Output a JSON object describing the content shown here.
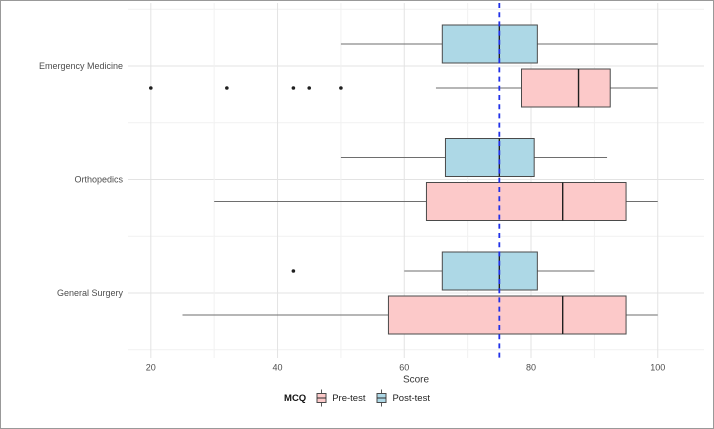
{
  "figure": {
    "background": "#ffffff",
    "border_color": "#999999"
  },
  "chart_data": {
    "type": "boxplot",
    "orientation": "horizontal",
    "xlabel": "Score",
    "x_ticks": [
      20,
      40,
      60,
      80,
      100
    ],
    "x_minor_ticks": [
      30,
      50,
      70,
      90
    ],
    "xlim": [
      16.4,
      107.3
    ],
    "categories": [
      "Emergency Medicine",
      "Orthopedics",
      "General Surgery"
    ],
    "reference_line": {
      "value": 75,
      "style": "dashed",
      "color": "#2030e8"
    },
    "series": [
      {
        "name": "Pre-test",
        "fill": "#FCC9C9",
        "boxes": [
          {
            "category": "Emergency Medicine",
            "whisker_low": 65,
            "q1": 78.5,
            "median": 87.5,
            "q3": 92.5,
            "whisker_high": 100,
            "outliers": [
              20,
              32,
              42.5,
              45,
              50
            ]
          },
          {
            "category": "Orthopedics",
            "whisker_low": 30,
            "q1": 63.5,
            "median": 85,
            "q3": 95,
            "whisker_high": 100,
            "outliers": []
          },
          {
            "category": "General Surgery",
            "whisker_low": 25,
            "q1": 57.5,
            "median": 85,
            "q3": 95,
            "whisker_high": 100,
            "outliers": []
          }
        ]
      },
      {
        "name": "Post-test",
        "fill": "#ADD8E6",
        "boxes": [
          {
            "category": "Emergency Medicine",
            "whisker_low": 50,
            "q1": 66,
            "median": 75,
            "q3": 81,
            "whisker_high": 100,
            "outliers": []
          },
          {
            "category": "Orthopedics",
            "whisker_low": 50,
            "q1": 66.5,
            "median": 75,
            "q3": 80.5,
            "whisker_high": 92,
            "outliers": []
          },
          {
            "category": "General Surgery",
            "whisker_low": 60,
            "q1": 66,
            "median": 75,
            "q3": 81,
            "whisker_high": 90,
            "outliers": [
              42.5
            ]
          }
        ]
      }
    ],
    "legend": {
      "title": "MCQ",
      "position": "bottom",
      "items": [
        {
          "label": "Pre-test",
          "color": "#FCC9C9"
        },
        {
          "label": "Post-test",
          "color": "#ADD8E6"
        }
      ]
    },
    "colors": {
      "box_border": "#4a4a4a",
      "median": "#1f1f1f",
      "whisker": "#6e6e6e",
      "outlier": "#1f1f1f",
      "grid_major": "#e3e3e3",
      "grid_minor": "#f1f1f1",
      "tick_label": "#4d4d4d",
      "axis_label": "#383838"
    }
  }
}
